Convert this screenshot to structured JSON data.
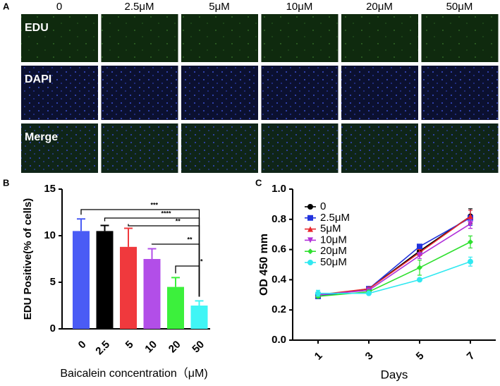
{
  "panel_labels": [
    "A",
    "B",
    "C"
  ],
  "panel_a": {
    "columns": [
      "0",
      "2.5μM",
      "5μM",
      "10μM",
      "20μM",
      "50μM"
    ],
    "rows": [
      "EDU",
      "DAPI",
      "Merge"
    ]
  },
  "chart_data": [
    {
      "type": "bar",
      "categories": [
        "0",
        "2.5",
        "5",
        "10",
        "20",
        "50"
      ],
      "values": [
        10.5,
        10.5,
        8.8,
        7.5,
        4.5,
        2.5
      ],
      "errors": [
        1.3,
        0.6,
        2.0,
        1.1,
        1.0,
        0.5
      ],
      "colors": [
        "#4a5cf5",
        "#000000",
        "#f0393d",
        "#b24ee8",
        "#3cf03c",
        "#40f5f5"
      ],
      "ylim": [
        0,
        15
      ],
      "yticks": [
        0,
        5,
        10,
        15
      ],
      "ylabel": "EDU Positive(% of cells)",
      "xlabel": "Baicalein concentration（μM)",
      "annotations": [
        "***",
        "****",
        "**",
        "**",
        "*"
      ]
    },
    {
      "type": "line",
      "x": [
        1,
        3,
        5,
        7
      ],
      "xlim": [
        0,
        8
      ],
      "xticks": [
        1,
        3,
        5,
        7
      ],
      "ylim": [
        0,
        1
      ],
      "yticks": [
        {
          "value": 0,
          "label": "0.0"
        },
        0.2,
        0.4,
        0.6,
        0.8,
        {
          "value": 1,
          "label": "1.0"
        }
      ],
      "xlabel": "Days",
      "ylabel": "OD 450 mm",
      "legend": "upper left",
      "series": [
        {
          "name": "0",
          "color": "#000000",
          "marker": "circle",
          "values": [
            0.29,
            0.34,
            0.59,
            0.82
          ],
          "errors": [
            0.01,
            0.01,
            0.02,
            0.05
          ]
        },
        {
          "name": "2.5μM",
          "color": "#2233dd",
          "marker": "square",
          "values": [
            0.29,
            0.34,
            0.62,
            0.81
          ],
          "errors": [
            0.01,
            0.01,
            0.01,
            0.05
          ]
        },
        {
          "name": "5μM",
          "color": "#e8252a",
          "marker": "triangle-up",
          "values": [
            0.3,
            0.34,
            0.58,
            0.82
          ],
          "errors": [
            0.01,
            0.01,
            0.02,
            0.04
          ]
        },
        {
          "name": "10μM",
          "color": "#b030d8",
          "marker": "triangle-down",
          "values": [
            0.3,
            0.33,
            0.56,
            0.77
          ],
          "errors": [
            0.01,
            0.01,
            0.02,
            0.03
          ]
        },
        {
          "name": "20μM",
          "color": "#30e030",
          "marker": "diamond",
          "values": [
            0.29,
            0.32,
            0.48,
            0.65
          ],
          "errors": [
            0.01,
            0.01,
            0.05,
            0.04
          ]
        },
        {
          "name": "50μM",
          "color": "#30e8f0",
          "marker": "circle",
          "values": [
            0.31,
            0.31,
            0.4,
            0.52
          ],
          "errors": [
            0.02,
            0.01,
            0.01,
            0.03
          ]
        }
      ]
    }
  ]
}
